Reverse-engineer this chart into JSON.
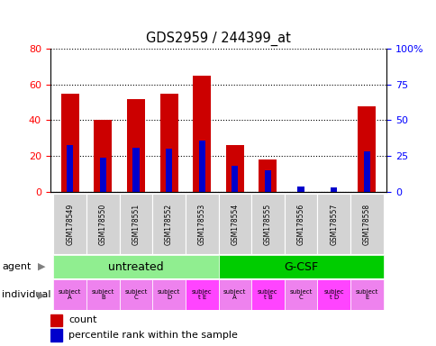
{
  "title": "GDS2959 / 244399_at",
  "samples": [
    "GSM178549",
    "GSM178550",
    "GSM178551",
    "GSM178552",
    "GSM178553",
    "GSM178554",
    "GSM178555",
    "GSM178556",
    "GSM178557",
    "GSM178558"
  ],
  "red_values": [
    55,
    40,
    52,
    55,
    65,
    26,
    18,
    0,
    0,
    48
  ],
  "blue_values": [
    33,
    24,
    31,
    30,
    36,
    18,
    15,
    4,
    3,
    28
  ],
  "ylim_left": [
    0,
    80
  ],
  "ylim_right": [
    0,
    100
  ],
  "yticks_left": [
    0,
    20,
    40,
    60,
    80
  ],
  "yticks_right": [
    0,
    25,
    50,
    75,
    100
  ],
  "ytick_labels_right": [
    "0",
    "25",
    "50",
    "75",
    "100%"
  ],
  "agent_groups": [
    {
      "label": "untreated",
      "start": 0,
      "end": 5,
      "color": "#90ee90"
    },
    {
      "label": "G-CSF",
      "start": 5,
      "end": 10,
      "color": "#00cc00"
    }
  ],
  "individuals": [
    "subject\nA",
    "subject\nB",
    "subject\nC",
    "subject\nD",
    "subjec\nt E",
    "subject\nA",
    "subjec\nt B",
    "subject\nC",
    "subjec\nt D",
    "subject\nE"
  ],
  "individual_highlights": [
    4,
    6,
    8
  ],
  "individual_bg_normal": "#ee82ee",
  "individual_bg_highlight": "#ff44ff",
  "xticklabel_bg": "#d3d3d3",
  "bar_width": 0.55,
  "blue_bar_width": 0.2,
  "red_color": "#cc0000",
  "blue_color": "#0000cc",
  "legend_red": "count",
  "legend_blue": "percentile rank within the sample"
}
